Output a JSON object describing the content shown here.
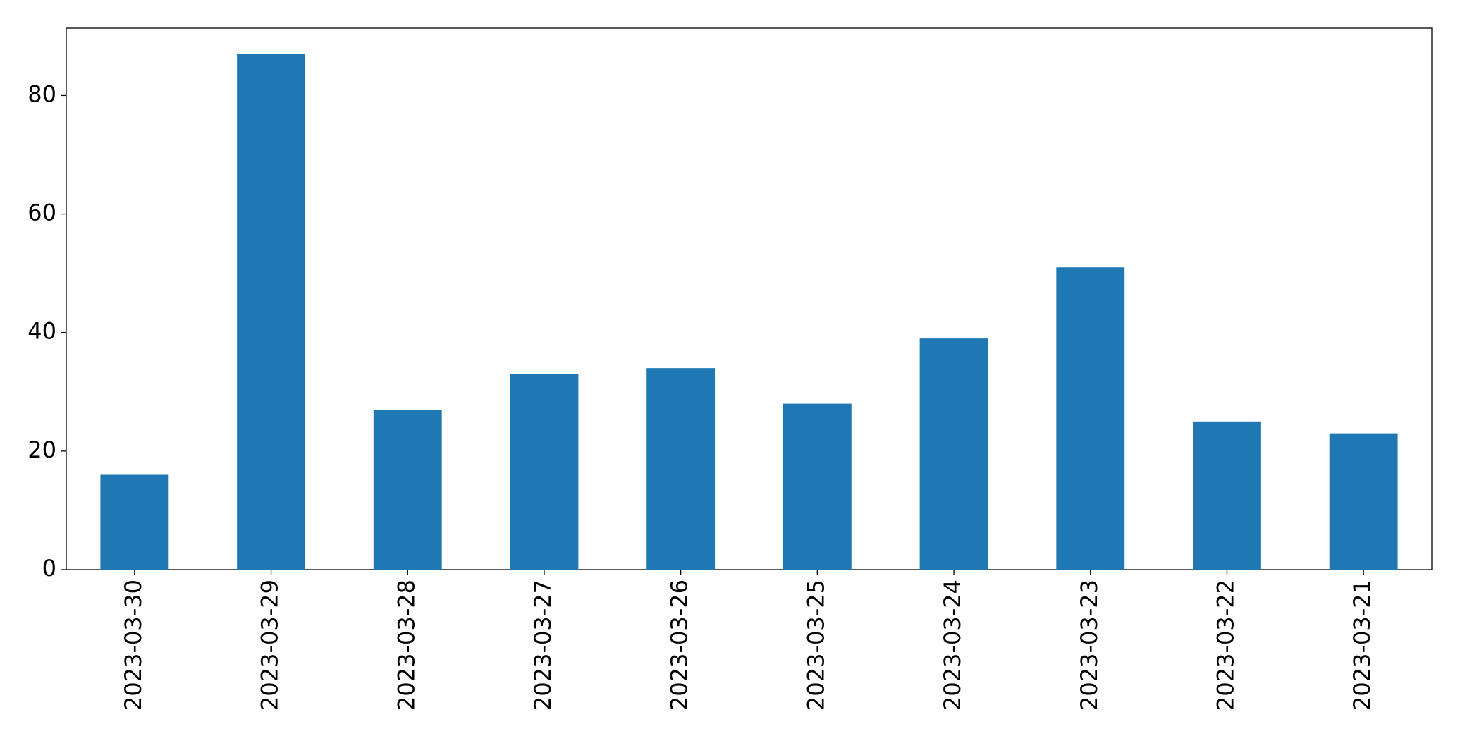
{
  "chart_data": {
    "type": "bar",
    "categories": [
      "2023-03-30",
      "2023-03-29",
      "2023-03-28",
      "2023-03-27",
      "2023-03-26",
      "2023-03-25",
      "2023-03-24",
      "2023-03-23",
      "2023-03-22",
      "2023-03-21"
    ],
    "values": [
      16,
      87,
      27,
      33,
      34,
      28,
      39,
      51,
      25,
      23
    ],
    "color": "#1f77b4",
    "ylim": [
      0,
      91.35
    ],
    "yticks": [
      0,
      20,
      40,
      60,
      80
    ],
    "grid": false
  }
}
